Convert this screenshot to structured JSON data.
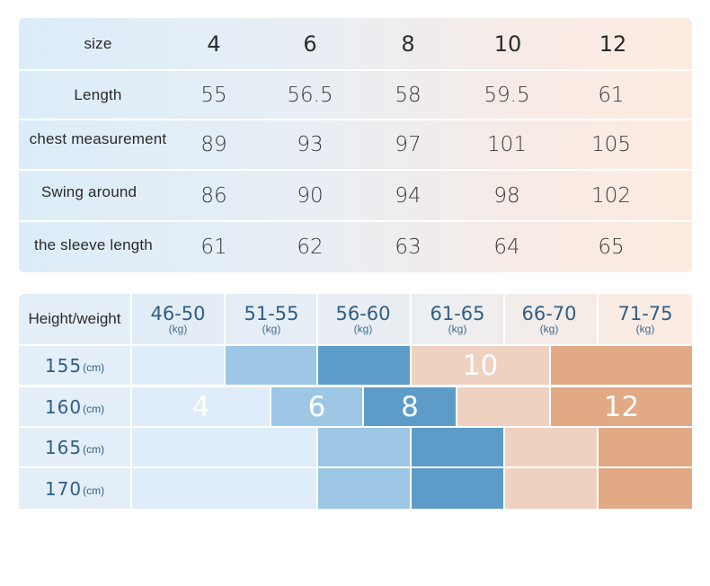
{
  "size_chart": {
    "header": {
      "label": "size",
      "values": [
        "4",
        "6",
        "8",
        "10",
        "12"
      ]
    },
    "rows": [
      {
        "label": "Length",
        "values": [
          "55",
          "56.5",
          "58",
          "59.5",
          "61"
        ]
      },
      {
        "label": "chest measurement",
        "values": [
          "89",
          "93",
          "97",
          "101",
          "105"
        ]
      },
      {
        "label": "Swing around",
        "values": [
          "86",
          "90",
          "94",
          "98",
          "102"
        ]
      },
      {
        "label": "the sleeve length",
        "values": [
          "61",
          "62",
          "63",
          "64",
          "65"
        ]
      }
    ]
  },
  "height_weight_chart": {
    "corner_label": "Height/weight",
    "weight_columns": [
      {
        "range": "46-50",
        "unit": "(kg)"
      },
      {
        "range": "51-55",
        "unit": "(kg)"
      },
      {
        "range": "56-60",
        "unit": "(kg)"
      },
      {
        "range": "61-65",
        "unit": "(kg)"
      },
      {
        "range": "66-70",
        "unit": "(kg)"
      },
      {
        "range": "71-75",
        "unit": "(kg)"
      }
    ],
    "height_rows": [
      {
        "height": "155",
        "unit": "(cm)"
      },
      {
        "height": "160",
        "unit": "(cm)"
      },
      {
        "height": "165",
        "unit": "(cm)"
      },
      {
        "height": "170",
        "unit": "(cm)"
      }
    ],
    "size_labels": {
      "s4": "4",
      "s6": "6",
      "s8": "8",
      "s10": "10",
      "s12": "12"
    },
    "colors": {
      "size_4": "#deedf9",
      "size_6": "#9dc7e5",
      "size_8": "#5d9cc8",
      "size_10": "#eed1c0",
      "size_12": "#e2a985"
    }
  }
}
